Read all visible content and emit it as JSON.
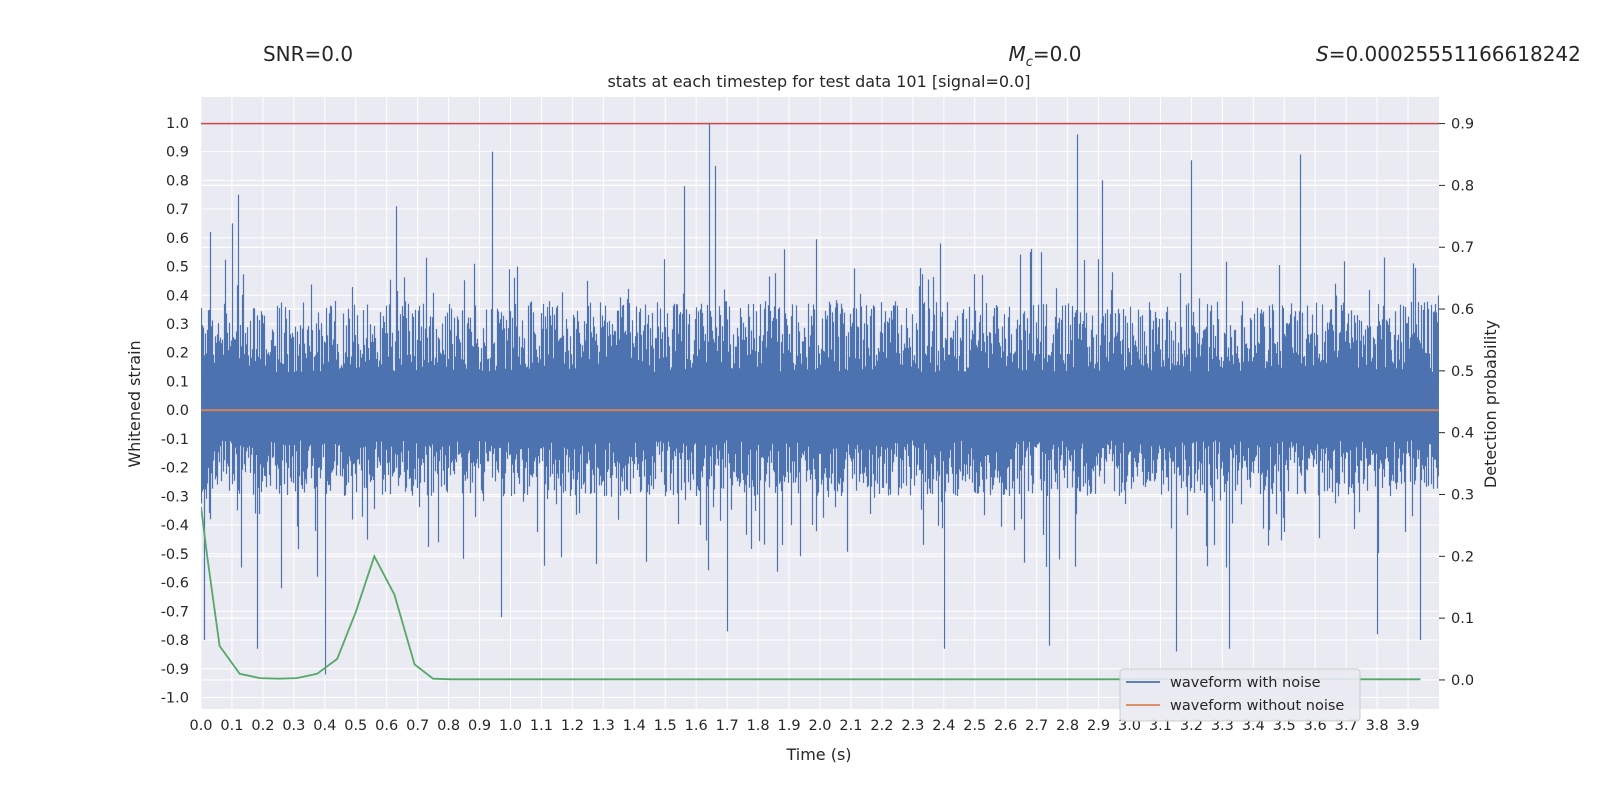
{
  "header": {
    "snr_label": "SNR=0.0",
    "mc_symbol": "M",
    "mc_subscript": "c",
    "mc_value": "=0.0",
    "s_symbol": "S",
    "s_value": "=0.00025551166618242"
  },
  "colors": {
    "background": "#eaeaf2",
    "grid": "#ffffff",
    "noisy": "#4c72b0",
    "clean": "#dd8452",
    "probability": "#55a868",
    "threshold": "#c44e52"
  },
  "chart_data": {
    "type": "line",
    "title": "stats at each timestep for test data 101 [signal=0.0]",
    "xlabel": "Time (s)",
    "ylabel": "Whitened strain",
    "y2label": "Detection probability",
    "xlim": [
      0.0,
      4.0
    ],
    "ylim": [
      -1.04,
      1.09
    ],
    "y2lim": [
      -0.047,
      0.943
    ],
    "xticks": [
      "0.0",
      "0.1",
      "0.2",
      "0.3",
      "0.4",
      "0.5",
      "0.6",
      "0.7",
      "0.8",
      "0.9",
      "1.0",
      "1.1",
      "1.2",
      "1.3",
      "1.4",
      "1.5",
      "1.6",
      "1.7",
      "1.8",
      "1.9",
      "2.0",
      "2.1",
      "2.2",
      "2.3",
      "2.4",
      "2.5",
      "2.6",
      "2.7",
      "2.8",
      "2.9",
      "3.0",
      "3.1",
      "3.2",
      "3.3",
      "3.4",
      "3.5",
      "3.6",
      "3.7",
      "3.8",
      "3.9"
    ],
    "yticks": [
      "1.0",
      "0.9",
      "0.8",
      "0.7",
      "0.6",
      "0.5",
      "0.4",
      "0.3",
      "0.2",
      "0.1",
      "0.0",
      "-0.1",
      "-0.2",
      "-0.3",
      "-0.4",
      "-0.5",
      "-0.6",
      "-0.7",
      "-0.8",
      "-0.9",
      "-1.0"
    ],
    "y2ticks": [
      "0.9",
      "0.8",
      "0.7",
      "0.6",
      "0.5",
      "0.4",
      "0.3",
      "0.2",
      "0.1",
      "0.0"
    ],
    "grid": true,
    "legend_position": "lower-right",
    "series": [
      {
        "name": "waveform with noise",
        "axis": "left",
        "note_sampling": "dense noise, sampled at 4096 Hz",
        "sample_rate": 4096,
        "typical_max": 0.38,
        "typical_min": -0.3,
        "peaks": [
          {
            "x": 0.03,
            "y": 0.62
          },
          {
            "x": 0.1,
            "y": 0.65
          },
          {
            "x": 0.12,
            "y": 0.75
          },
          {
            "x": 0.01,
            "y": -0.8
          },
          {
            "x": 0.18,
            "y": -0.83
          },
          {
            "x": 0.26,
            "y": -0.62
          },
          {
            "x": 0.4,
            "y": -0.92
          },
          {
            "x": 0.63,
            "y": 0.71
          },
          {
            "x": 0.94,
            "y": 0.9
          },
          {
            "x": 0.97,
            "y": -0.72
          },
          {
            "x": 1.64,
            "y": 1.0
          },
          {
            "x": 1.66,
            "y": 0.85
          },
          {
            "x": 1.56,
            "y": 0.78
          },
          {
            "x": 1.7,
            "y": -0.77
          },
          {
            "x": 2.4,
            "y": -0.83
          },
          {
            "x": 2.83,
            "y": 0.96
          },
          {
            "x": 2.91,
            "y": 0.8
          },
          {
            "x": 2.74,
            "y": -0.82
          },
          {
            "x": 3.15,
            "y": -0.84
          },
          {
            "x": 3.2,
            "y": 0.87
          },
          {
            "x": 3.32,
            "y": -0.83
          },
          {
            "x": 3.55,
            "y": 0.89
          },
          {
            "x": 3.8,
            "y": -0.78
          },
          {
            "x": 3.94,
            "y": -0.8
          }
        ]
      },
      {
        "name": "waveform without noise",
        "axis": "left",
        "x": [
          0.0,
          4.0
        ],
        "y": [
          0.0,
          0.0
        ]
      },
      {
        "name": "probability",
        "axis": "right",
        "x": [
          0.0,
          0.02,
          0.06,
          0.125,
          0.19,
          0.25,
          0.31,
          0.375,
          0.44,
          0.5,
          0.56,
          0.625,
          0.69,
          0.75,
          0.81,
          0.875,
          1.0,
          2.0,
          3.0,
          3.94
        ],
        "y": [
          0.28,
          0.2,
          0.055,
          0.01,
          0.003,
          0.002,
          0.003,
          0.01,
          0.034,
          0.11,
          0.2,
          0.138,
          0.025,
          0.002,
          0.001,
          0.001,
          0.001,
          0.001,
          0.001,
          0.001
        ]
      },
      {
        "name": "threshold",
        "axis": "right",
        "x": [
          0.0,
          4.0
        ],
        "y": [
          0.9,
          0.9
        ]
      }
    ]
  }
}
